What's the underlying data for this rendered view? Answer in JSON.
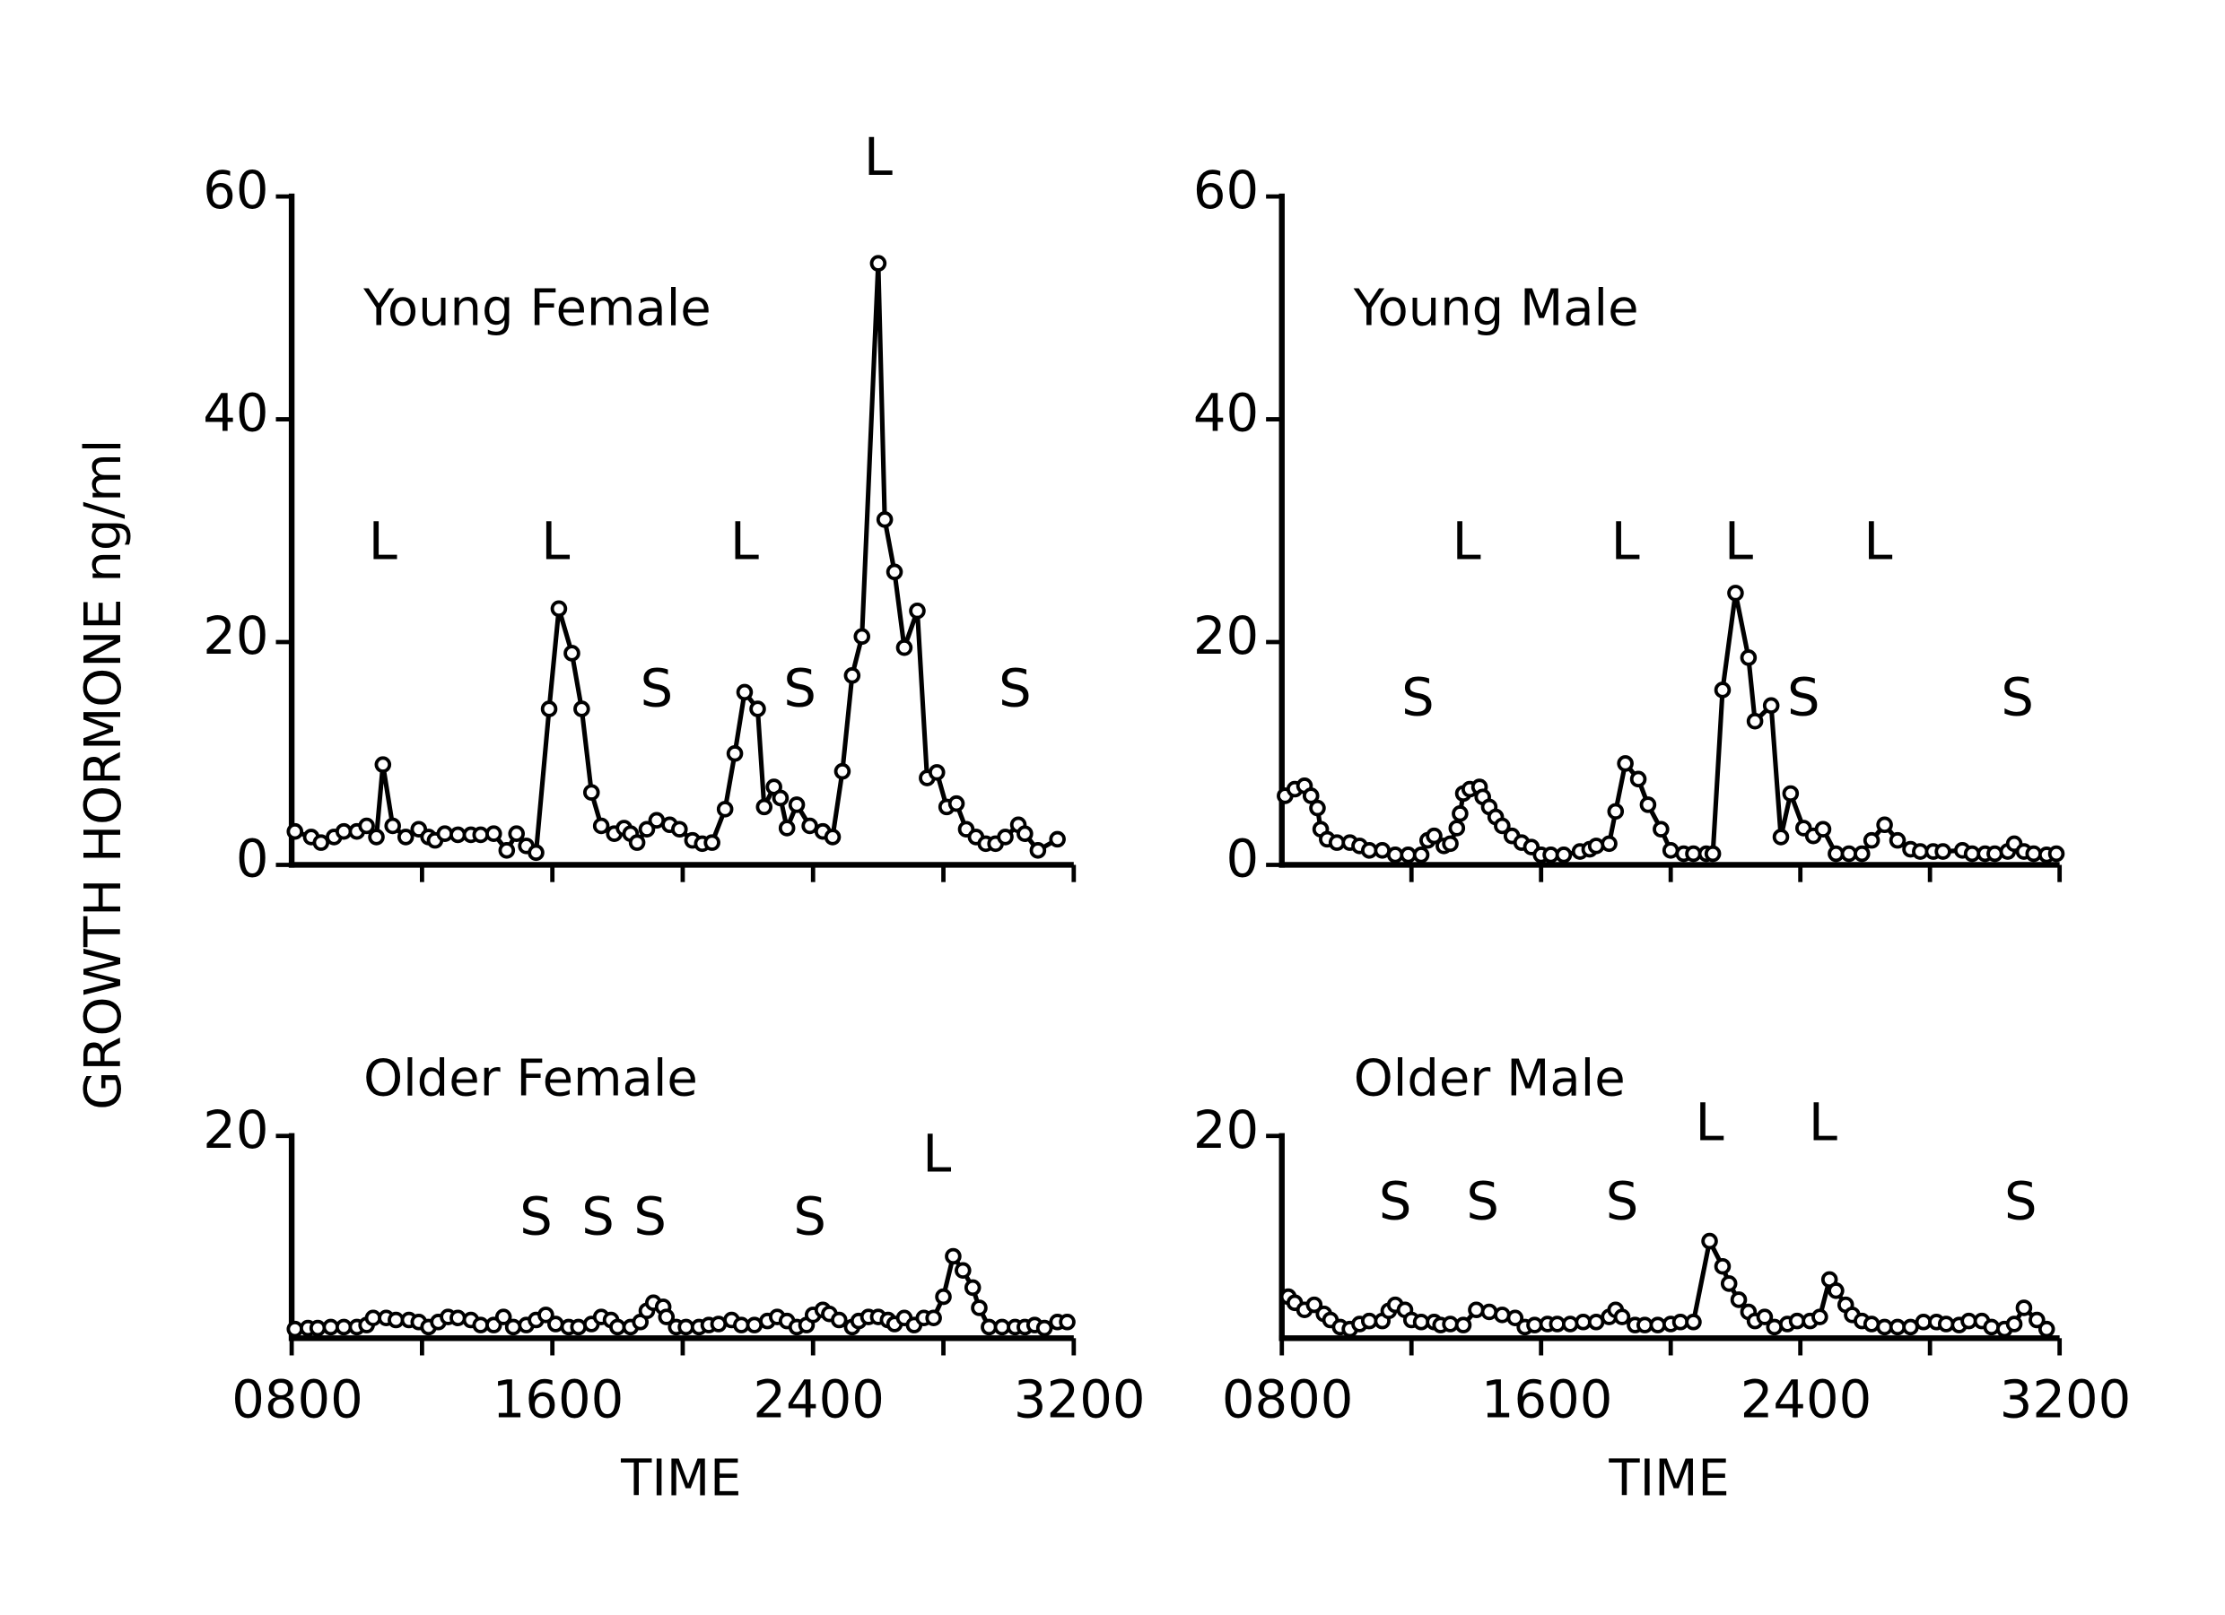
{
  "ylabel": "GROWTH HORMONE ng/ml",
  "chart_data": [
    {
      "type": "line",
      "title": "Young Female",
      "color": "#000000",
      "marker": "circle",
      "xlim": [
        8,
        32
      ],
      "ylim": [
        0,
        60
      ],
      "yticks": [
        0,
        20,
        40,
        60
      ],
      "xticks_minor": [
        12,
        16,
        20,
        24,
        28,
        32
      ],
      "x": [
        8.1,
        8.6,
        8.9,
        9.3,
        9.6,
        10.0,
        10.3,
        10.6,
        10.8,
        11.1,
        11.5,
        11.9,
        12.2,
        12.4,
        12.7,
        13.1,
        13.5,
        13.8,
        14.2,
        14.6,
        14.9,
        15.2,
        15.5,
        15.9,
        16.2,
        16.6,
        16.9,
        17.2,
        17.5,
        17.9,
        18.2,
        18.4,
        18.6,
        18.9,
        19.2,
        19.6,
        19.9,
        20.3,
        20.6,
        20.9,
        21.3,
        21.6,
        21.9,
        22.3,
        22.5,
        22.8,
        23.0,
        23.2,
        23.5,
        23.9,
        24.3,
        24.6,
        24.9,
        25.2,
        25.5,
        26.0,
        26.2,
        26.5,
        26.8,
        27.2,
        27.5,
        27.8,
        28.1,
        28.4,
        28.7,
        29.0,
        29.3,
        29.6,
        29.9,
        30.3,
        30.5,
        30.9,
        31.5
      ],
      "values": [
        3,
        2.5,
        2,
        2.5,
        3,
        3,
        3.5,
        2.5,
        9,
        3.5,
        2.5,
        3.2,
        2.5,
        2.2,
        2.8,
        2.7,
        2.7,
        2.7,
        2.8,
        1.3,
        2.8,
        1.7,
        1.1,
        14,
        23,
        19,
        14,
        6.5,
        3.5,
        2.8,
        3.3,
        2.8,
        2,
        3.2,
        4,
        3.6,
        3.2,
        2.2,
        1.9,
        2,
        5,
        10,
        15.5,
        14,
        5.2,
        7,
        6,
        3.3,
        5.4,
        3.5,
        3,
        2.5,
        8.4,
        17,
        20.5,
        54,
        31,
        26.3,
        19.5,
        22.8,
        7.8,
        8.3,
        5.2,
        5.5,
        3.2,
        2.5,
        1.9,
        1.9,
        2.5,
        3.6,
        2.8,
        1.3,
        2.3
      ],
      "annotations": [
        {
          "text": "L",
          "x": 10.8,
          "y": 29
        },
        {
          "text": "L",
          "x": 16.1,
          "y": 29
        },
        {
          "text": "S",
          "x": 19.2,
          "y": 15.8
        },
        {
          "text": "L",
          "x": 21.9,
          "y": 29
        },
        {
          "text": "S",
          "x": 23.6,
          "y": 15.8
        },
        {
          "text": "L",
          "x": 26.0,
          "y": 63.5
        },
        {
          "text": "S",
          "x": 30.2,
          "y": 15.8
        }
      ]
    },
    {
      "type": "line",
      "title": "Young Male",
      "color": "#000000",
      "marker": "circle",
      "xlim": [
        8,
        32
      ],
      "ylim": [
        0,
        60
      ],
      "yticks": [
        0,
        20,
        40,
        60
      ],
      "xticks_minor": [
        12,
        16,
        20,
        24,
        28,
        32
      ],
      "x": [
        8.1,
        8.4,
        8.7,
        8.9,
        9.1,
        9.2,
        9.4,
        9.7,
        10.1,
        10.4,
        10.7,
        11.1,
        11.5,
        11.9,
        12.3,
        12.5,
        12.7,
        13.0,
        13.2,
        13.4,
        13.5,
        13.6,
        13.8,
        14.1,
        14.2,
        14.4,
        14.6,
        14.8,
        15.1,
        15.4,
        15.7,
        16.0,
        16.3,
        16.7,
        17.2,
        17.5,
        17.7,
        18.1,
        18.3,
        18.6,
        19.0,
        19.3,
        19.7,
        20.0,
        20.4,
        20.7,
        21.1,
        21.3,
        21.6,
        22.0,
        22.4,
        22.6,
        23.1,
        23.4,
        23.7,
        24.1,
        24.4,
        24.7,
        25.1,
        25.5,
        25.9,
        26.2,
        26.6,
        27.0,
        27.4,
        27.7,
        28.1,
        28.4,
        29.0,
        29.3,
        29.7,
        30.0,
        30.4,
        30.6,
        30.9,
        31.2,
        31.6,
        31.9
      ],
      "values": [
        6.2,
        6.8,
        7.1,
        6.2,
        5.1,
        3.2,
        2.3,
        2,
        2,
        1.7,
        1.3,
        1.3,
        0.9,
        0.9,
        0.9,
        2.2,
        2.6,
        1.7,
        1.9,
        3.3,
        4.6,
        6.4,
        6.8,
        7,
        6.1,
        5.2,
        4.3,
        3.5,
        2.6,
        2,
        1.6,
        0.9,
        0.9,
        0.9,
        1.2,
        1.4,
        1.7,
        1.9,
        4.8,
        9.1,
        7.7,
        5.4,
        3.2,
        1.3,
        1,
        1,
        1,
        1,
        15.7,
        24.4,
        18.6,
        12.9,
        14.3,
        2.5,
        6.4,
        3.3,
        2.6,
        3.2,
        1,
        1,
        1,
        2.2,
        3.6,
        2.2,
        1.4,
        1.2,
        1.2,
        1.2,
        1.3,
        1,
        1,
        1,
        1.2,
        1.9,
        1.2,
        1,
        0.9,
        1
      ],
      "annotations": [
        {
          "text": "S",
          "x": 12.2,
          "y": 15
        },
        {
          "text": "L",
          "x": 13.7,
          "y": 29
        },
        {
          "text": "L",
          "x": 18.6,
          "y": 29
        },
        {
          "text": "L",
          "x": 22.1,
          "y": 29
        },
        {
          "text": "S",
          "x": 24.1,
          "y": 15
        },
        {
          "text": "L",
          "x": 26.4,
          "y": 29
        },
        {
          "text": "S",
          "x": 30.7,
          "y": 15
        }
      ]
    },
    {
      "type": "line",
      "title": "Older Female",
      "color": "#000000",
      "marker": "circle",
      "xlabel": "TIME",
      "xlim": [
        8,
        32
      ],
      "ylim": [
        0,
        20
      ],
      "yticks": [
        20
      ],
      "xticks": [
        {
          "value": 8,
          "label": "0800"
        },
        {
          "value": 16,
          "label": "1600"
        },
        {
          "value": 24,
          "label": "2400"
        },
        {
          "value": 32,
          "label": "3200"
        }
      ],
      "xticks_minor": [
        12,
        20,
        28
      ],
      "x": [
        8.1,
        8.5,
        8.8,
        9.2,
        9.6,
        10.0,
        10.3,
        10.5,
        10.9,
        11.2,
        11.6,
        11.9,
        12.2,
        12.5,
        12.8,
        13.1,
        13.5,
        13.8,
        14.2,
        14.5,
        14.8,
        15.2,
        15.5,
        15.8,
        16.1,
        16.5,
        16.8,
        17.2,
        17.5,
        17.8,
        18.0,
        18.4,
        18.7,
        18.9,
        19.1,
        19.4,
        19.5,
        19.8,
        20.1,
        20.5,
        20.8,
        21.1,
        21.5,
        21.8,
        22.2,
        22.6,
        22.9,
        23.2,
        23.5,
        23.8,
        24.0,
        24.3,
        24.5,
        24.8,
        25.2,
        25.4,
        25.7,
        26.0,
        26.3,
        26.5,
        26.8,
        27.1,
        27.4,
        27.7,
        28.0,
        28.3,
        28.6,
        28.9,
        29.1,
        29.4,
        29.8,
        30.2,
        30.5,
        30.8,
        31.1,
        31.5,
        31.8
      ],
      "values": [
        0.9,
        1,
        1,
        1.1,
        1.1,
        1.1,
        1.3,
        2,
        2,
        1.8,
        1.8,
        1.6,
        1.1,
        1.6,
        2.1,
        2,
        1.8,
        1.3,
        1.3,
        2.1,
        1.1,
        1.3,
        1.8,
        2.3,
        1.4,
        1.1,
        1.1,
        1.4,
        2.1,
        1.8,
        1.1,
        1.1,
        1.6,
        2.7,
        3.5,
        3.1,
        2.1,
        1.1,
        1.1,
        1.1,
        1.3,
        1.4,
        1.8,
        1.3,
        1.3,
        1.7,
        2.1,
        1.7,
        1.1,
        1.3,
        2.3,
        2.8,
        2.4,
        1.8,
        1.1,
        1.7,
        2.1,
        2.1,
        1.8,
        1.4,
        2,
        1.3,
        2,
        2,
        4.1,
        8.1,
        6.7,
        5,
        3,
        1.1,
        1.1,
        1.1,
        1.1,
        1.3,
        1,
        1.6,
        1.6
      ],
      "annotations": [
        {
          "text": "S",
          "x": 15.5,
          "y": 12
        },
        {
          "text": "S",
          "x": 17.4,
          "y": 12
        },
        {
          "text": "S",
          "x": 19.0,
          "y": 12
        },
        {
          "text": "S",
          "x": 23.9,
          "y": 12
        },
        {
          "text": "L",
          "x": 27.8,
          "y": 18.2
        }
      ]
    },
    {
      "type": "line",
      "title": "Older Male",
      "color": "#000000",
      "marker": "circle",
      "xlabel": "TIME",
      "xlim": [
        8,
        32
      ],
      "ylim": [
        0,
        20
      ],
      "yticks": [
        20
      ],
      "xticks": [
        {
          "value": 8,
          "label": "0800"
        },
        {
          "value": 16,
          "label": "1600"
        },
        {
          "value": 24,
          "label": "2400"
        },
        {
          "value": 32,
          "label": "3200"
        }
      ],
      "xticks_minor": [
        12,
        20,
        28
      ],
      "x": [
        8.2,
        8.4,
        8.7,
        9.0,
        9.3,
        9.5,
        9.8,
        10.1,
        10.4,
        10.7,
        11.1,
        11.3,
        11.5,
        11.8,
        12.0,
        12.3,
        12.7,
        12.9,
        13.2,
        13.6,
        14.0,
        14.4,
        14.8,
        15.2,
        15.5,
        15.8,
        16.2,
        16.5,
        16.9,
        17.3,
        17.7,
        18.1,
        18.3,
        18.5,
        18.9,
        19.2,
        19.6,
        20.0,
        20.3,
        20.7,
        21.2,
        21.6,
        21.8,
        22.1,
        22.4,
        22.6,
        22.9,
        23.2,
        23.6,
        23.9,
        24.3,
        24.6,
        24.9,
        25.1,
        25.4,
        25.6,
        25.9,
        26.2,
        26.6,
        27.0,
        27.4,
        27.8,
        28.2,
        28.5,
        28.9,
        29.2,
        29.6,
        29.9,
        30.3,
        30.6,
        30.9,
        31.3,
        31.6
      ],
      "values": [
        4.1,
        3.5,
        2.8,
        3.3,
        2.4,
        1.8,
        1.1,
        0.9,
        1.4,
        1.7,
        1.7,
        2.7,
        3.3,
        2.8,
        1.8,
        1.6,
        1.6,
        1.3,
        1.4,
        1.3,
        2.8,
        2.6,
        2.3,
        2,
        1.1,
        1.3,
        1.4,
        1.4,
        1.4,
        1.6,
        1.6,
        2.1,
        2.8,
        2.1,
        1.3,
        1.3,
        1.3,
        1.4,
        1.6,
        1.6,
        9.6,
        7.1,
        5.4,
        3.8,
        2.6,
        1.7,
        2.1,
        1.1,
        1.4,
        1.7,
        1.7,
        2.1,
        5.8,
        4.7,
        3.3,
        2.3,
        1.7,
        1.4,
        1.1,
        1.1,
        1.1,
        1.6,
        1.6,
        1.4,
        1.3,
        1.7,
        1.7,
        1.1,
        0.9,
        1.4,
        3,
        1.8,
        0.9
      ],
      "annotations": [
        {
          "text": "S",
          "x": 11.5,
          "y": 13.5
        },
        {
          "text": "S",
          "x": 14.2,
          "y": 13.5
        },
        {
          "text": "S",
          "x": 18.5,
          "y": 13.5
        },
        {
          "text": "L",
          "x": 21.2,
          "y": 21.3
        },
        {
          "text": "L",
          "x": 24.7,
          "y": 21.3
        },
        {
          "text": "S",
          "x": 30.8,
          "y": 13.5
        }
      ]
    }
  ]
}
